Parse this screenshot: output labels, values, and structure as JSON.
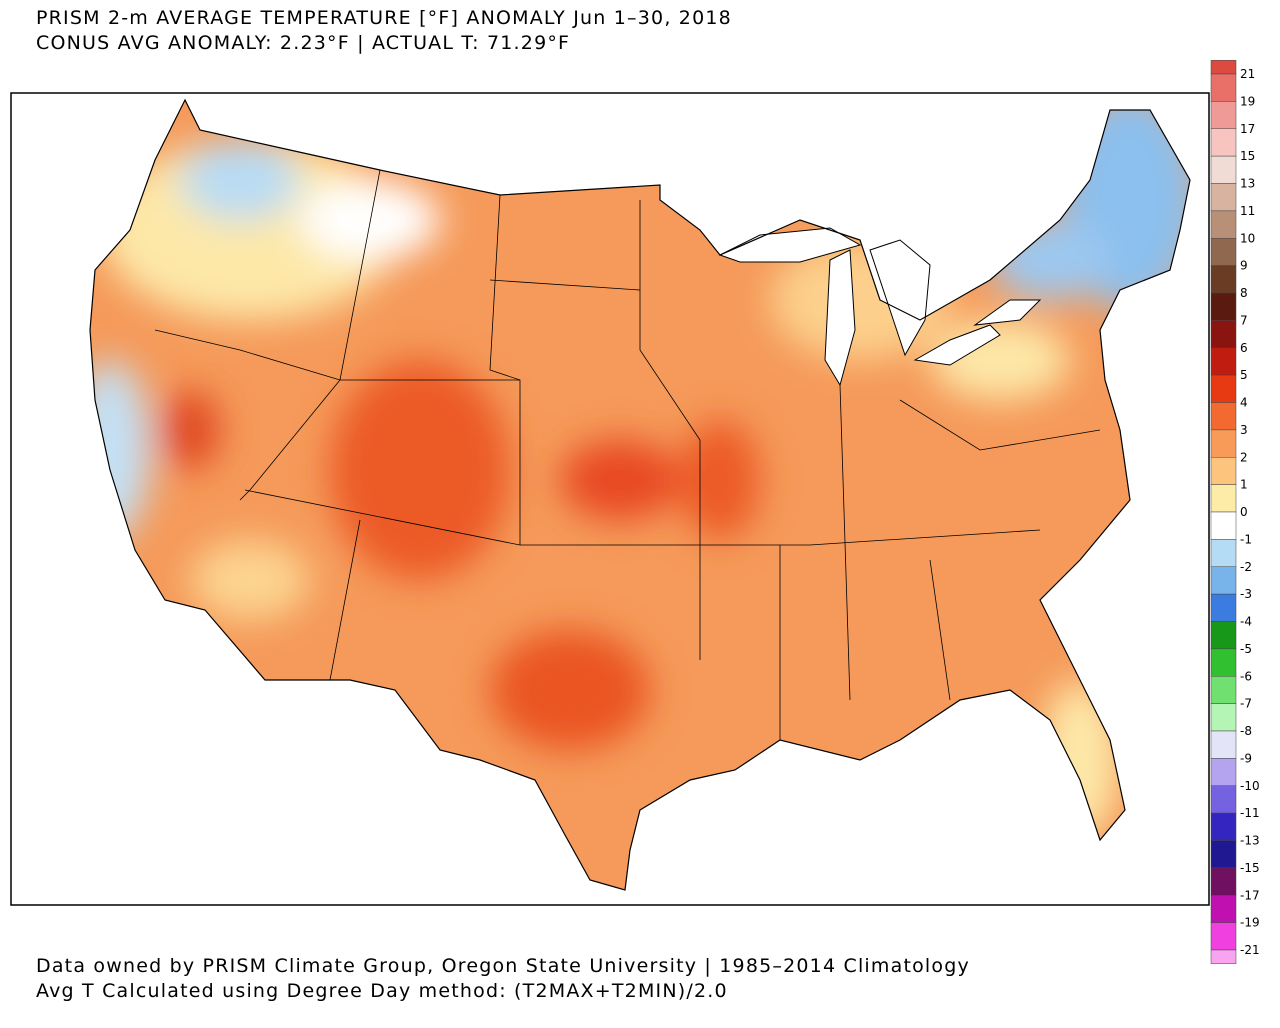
{
  "header": {
    "title": "PRISM 2-m AVERAGE TEMPERATURE [°F] ANOMALY Jun 1–30, 2018",
    "subtitle": "CONUS AVG ANOMALY: 2.23°F | ACTUAL T: 71.29°F"
  },
  "footer": {
    "line1": "Data owned by PRISM Climate Group, Oregon State University | 1985–2014 Climatology",
    "line2": "Avg T Calculated using Degree Day method: (T2MAX+T2MIN)/2.0"
  },
  "legend": {
    "labels": [
      21,
      19,
      17,
      15,
      13,
      11,
      10,
      9,
      8,
      7,
      6,
      5,
      4,
      3,
      2,
      1,
      0,
      -1,
      -2,
      -3,
      -4,
      -5,
      -6,
      -7,
      -8,
      -9,
      -10,
      -11,
      -13,
      -15,
      -17,
      -19,
      -21
    ],
    "colors": [
      "#dd4a40",
      "#e87068",
      "#f09a98",
      "#f8c4c0",
      "#f0dcd4",
      "#d8b4a0",
      "#b89078",
      "#906850",
      "#6a3c24",
      "#5a1a10",
      "#8a1410",
      "#c01c10",
      "#e83a12",
      "#f26a30",
      "#f89a58",
      "#fcc47c",
      "#fdeca8",
      "#ffffff",
      "#b4dcf4",
      "#78b4ea",
      "#3c7ce0",
      "#189818",
      "#30c030",
      "#70e070",
      "#b4f4b4",
      "#e4e4f8",
      "#b4a4f0",
      "#7462e0",
      "#3424c0",
      "#201890",
      "#701060",
      "#c010b0",
      "#f040e0",
      "#f8a4f0"
    ]
  }
}
